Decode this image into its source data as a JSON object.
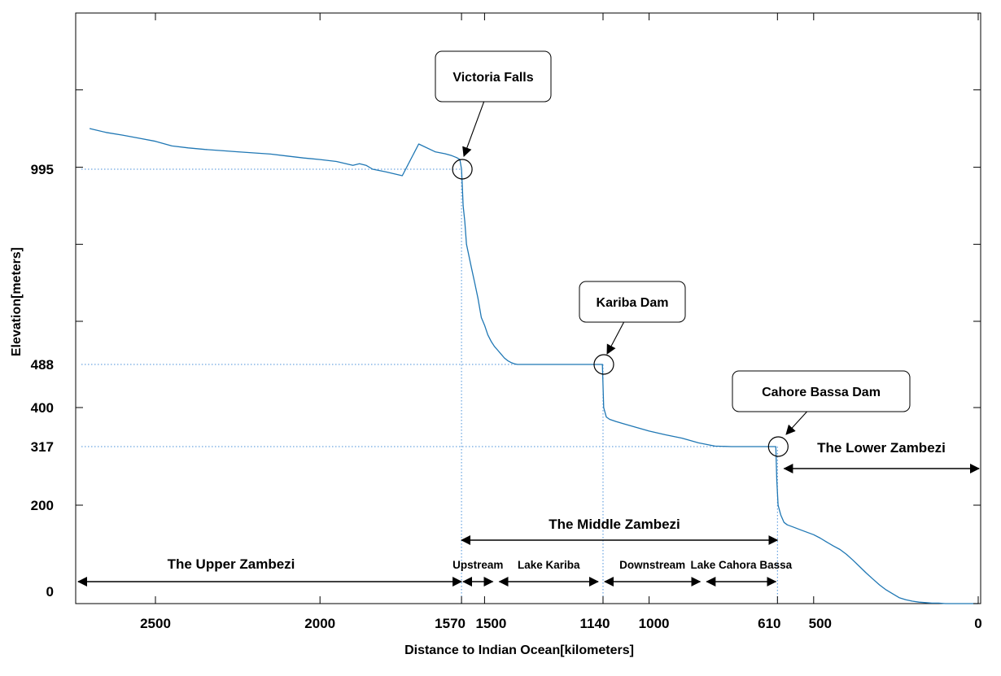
{
  "chart_data": {
    "type": "line",
    "title": "",
    "xlabel": "Distance to Indian Ocean[kilometers]",
    "ylabel": "Elevation[meters]",
    "xlim": [
      2700,
      0
    ],
    "x_reversed": true,
    "x_ticks": [
      2500,
      2000,
      1570,
      1500,
      1140,
      1000,
      610,
      500,
      0
    ],
    "y_ticks_labeled": [
      0,
      200,
      317,
      400,
      488,
      995
    ],
    "grid": false,
    "line_color": "#1f77b4",
    "guide_color": "#4a90d9",
    "series": [
      {
        "x": [
          2700,
          2650,
          2600,
          2550,
          2500,
          2450,
          2400,
          2350,
          2300,
          2250,
          2200,
          2150,
          2100,
          2050,
          2000,
          1950,
          1900,
          1880,
          1860,
          1840,
          1800,
          1750,
          1700,
          1650,
          1620,
          1600,
          1585,
          1575,
          1570,
          1568,
          1565,
          1560,
          1555,
          1550,
          1540,
          1530,
          1520,
          1510,
          1500,
          1490,
          1480,
          1470,
          1460,
          1450,
          1440,
          1430,
          1420,
          1410,
          1400,
          1350,
          1300,
          1250,
          1200,
          1150,
          1142,
          1138,
          1130,
          1120,
          1100,
          1050,
          1000,
          950,
          900,
          850,
          800,
          750,
          700,
          650,
          615,
          612,
          608,
          600,
          590,
          580,
          560,
          540,
          520,
          500,
          480,
          460,
          440,
          420,
          400,
          380,
          360,
          340,
          320,
          300,
          280,
          260,
          240,
          220,
          200,
          180,
          160,
          140,
          120,
          100,
          80,
          60,
          40,
          20,
          0
        ],
        "y": [
          1100,
          1090,
          1083,
          1075,
          1067,
          1055,
          1050,
          1046,
          1043,
          1040,
          1037,
          1034,
          1029,
          1024,
          1020,
          1015,
          1005,
          1009,
          1005,
          995,
          988,
          978,
          1060,
          1040,
          1035,
          1030,
          1025,
          1020,
          995,
          960,
          900,
          860,
          800,
          780,
          740,
          700,
          660,
          610,
          590,
          565,
          548,
          535,
          525,
          515,
          505,
          498,
          493,
          490,
          488,
          488,
          488,
          488,
          488,
          488,
          488,
          400,
          380,
          375,
          370,
          360,
          350,
          342,
          335,
          325,
          318,
          317,
          317,
          317,
          317,
          250,
          200,
          180,
          165,
          160,
          155,
          150,
          145,
          140,
          133,
          125,
          117,
          110,
          100,
          88,
          75,
          62,
          50,
          38,
          28,
          20,
          12,
          8,
          5,
          3,
          2,
          1,
          1,
          0,
          0,
          0,
          0,
          0,
          0
        ]
      }
    ],
    "annotations": [
      {
        "label": "Victoria Falls",
        "x": 1570,
        "y": 995
      },
      {
        "label": "Kariba Dam",
        "x": 1140,
        "y": 488
      },
      {
        "label": "Cahore Bassa Dam",
        "x": 610,
        "y": 317
      }
    ],
    "regions": [
      {
        "label": "The Upper Zambezi",
        "from": 2700,
        "to": 1570
      },
      {
        "label": "The Middle Zambezi",
        "from": 1570,
        "to": 610
      },
      {
        "label": "The Lower Zambezi",
        "from": 590,
        "to": 0
      }
    ],
    "subregions": [
      {
        "label": "Upstream",
        "from": 1570,
        "to": 1470
      },
      {
        "label": "Lake Kariba",
        "from": 1460,
        "to": 1150
      },
      {
        "label": "Downstream",
        "from": 1140,
        "to": 840
      },
      {
        "label": "Lake Cahora Bassa",
        "from": 830,
        "to": 610
      }
    ]
  }
}
